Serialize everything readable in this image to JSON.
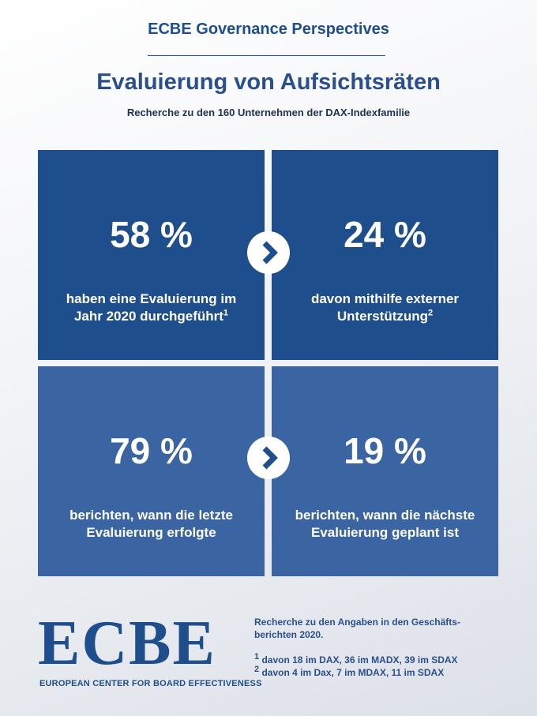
{
  "header": {
    "kicker": "ECBE Governance Perspectives",
    "title": "Evaluierung von Aufsichtsräten",
    "subtitle": "Recherche zu den 160 Unternehmen der DAX-Indexfamilie"
  },
  "tiles": [
    {
      "value": "58 %",
      "lines": [
        "haben eine Evaluierung im",
        "Jahr 2020 durchgeführt"
      ],
      "note": "1"
    },
    {
      "value": "24 %",
      "lines": [
        "davon mithilfe externer",
        "Unterstützung"
      ],
      "note": "2"
    },
    {
      "value": "79 %",
      "lines": [
        "berichten, wann die letzte",
        "Evaluierung erfolgte"
      ]
    },
    {
      "value": "19 %",
      "lines": [
        "berichten, wann die nächste",
        "Evaluierung geplant ist"
      ]
    }
  ],
  "footer": {
    "logo": "ECBE",
    "logo_subtitle": "EUROPEAN CENTER FOR BOARD EFFECTIVENESS",
    "source": [
      "Recherche zu den Angaben in den Geschäfts-",
      "berichten 2020."
    ],
    "footnotes": [
      {
        "marker": "1",
        "text": " davon 18 im DAX, 36 im MADX, 39 im SDAX"
      },
      {
        "marker": "2",
        "text": " davon 4 im Dax, 7 im MDAX, 11 im SDAX"
      }
    ]
  }
}
